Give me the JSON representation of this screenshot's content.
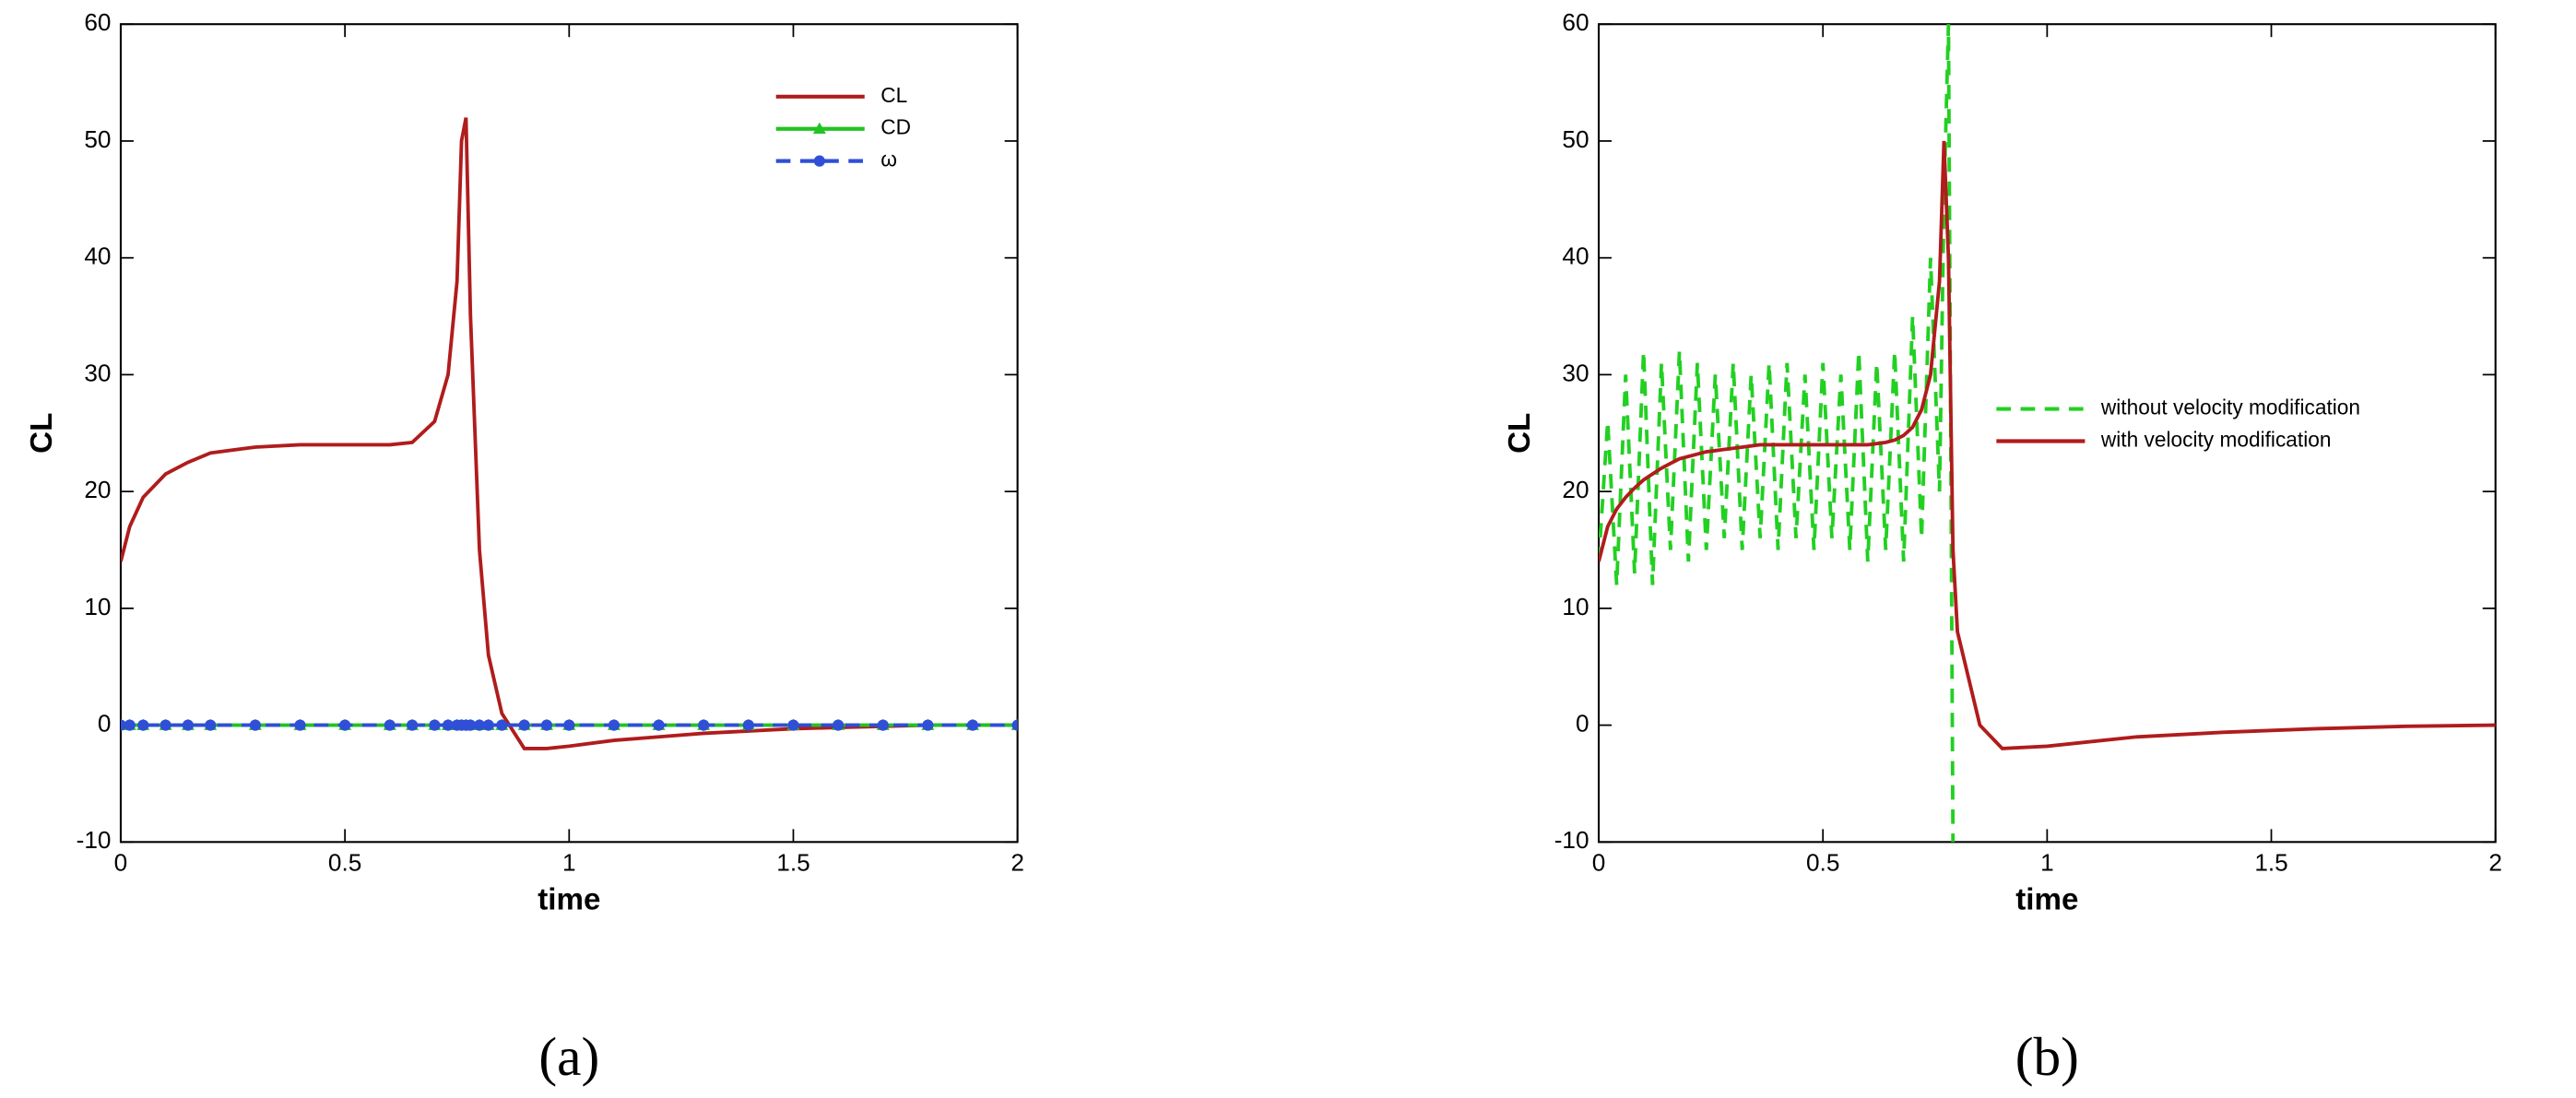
{
  "chart_data": [
    {
      "type": "line",
      "caption": "(a)",
      "x_label": "time",
      "y_label": "CL",
      "xlim": [
        0,
        2
      ],
      "ylim": [
        -10,
        60
      ],
      "xticks": [
        0,
        0.5,
        1,
        1.5,
        2
      ],
      "yticks": [
        -10,
        0,
        10,
        20,
        30,
        40,
        50,
        60
      ],
      "legend": "upper right",
      "x": [
        0,
        0.02,
        0.05,
        0.1,
        0.15,
        0.2,
        0.3,
        0.4,
        0.5,
        0.6,
        0.65,
        0.7,
        0.73,
        0.75,
        0.76,
        0.77,
        0.78,
        0.8,
        0.82,
        0.85,
        0.9,
        0.95,
        1.0,
        1.1,
        1.2,
        1.3,
        1.4,
        1.5,
        1.6,
        1.7,
        1.8,
        1.9,
        2.0
      ],
      "series": [
        {
          "name": "CL",
          "color": "#b01c1c",
          "line_style": "solid",
          "marker": "none",
          "values": [
            14,
            17,
            19.5,
            21.5,
            22.5,
            23.3,
            23.8,
            24,
            24,
            24,
            24.2,
            26,
            30,
            38,
            50,
            52,
            35,
            15,
            6,
            1,
            -2,
            -2,
            -1.8,
            -1.3,
            -1,
            -0.7,
            -0.5,
            -0.3,
            -0.2,
            -0.1,
            0,
            0,
            0
          ]
        },
        {
          "name": "CD",
          "color": "#22c322",
          "line_style": "solid",
          "marker": "triangle",
          "values": [
            0,
            0,
            0,
            0,
            0,
            0,
            0,
            0,
            0,
            0,
            0,
            0,
            0,
            0,
            0,
            0,
            0,
            0,
            0,
            0,
            0,
            0,
            0,
            0,
            0,
            0,
            0,
            0,
            0,
            0,
            0,
            0,
            0
          ]
        },
        {
          "name": "ω",
          "color": "#2f4fd6",
          "line_style": "dashed",
          "marker": "circle",
          "values": [
            0,
            0,
            0,
            0,
            0,
            0,
            0,
            0,
            0,
            0,
            0,
            0,
            0,
            0,
            0,
            0,
            0,
            0,
            0,
            0,
            0,
            0,
            0,
            0,
            0,
            0,
            0,
            0,
            0,
            0,
            0,
            0,
            0
          ]
        }
      ]
    },
    {
      "type": "line",
      "caption": "(b)",
      "x_label": "time",
      "y_label": "CL",
      "xlim": [
        0,
        2
      ],
      "ylim": [
        -10,
        60
      ],
      "xticks": [
        0,
        0.5,
        1,
        1.5,
        2
      ],
      "yticks": [
        -10,
        0,
        10,
        20,
        30,
        40,
        50,
        60
      ],
      "legend": "center right",
      "x": [
        0,
        0.02,
        0.04,
        0.06,
        0.08,
        0.1,
        0.12,
        0.14,
        0.16,
        0.18,
        0.2,
        0.22,
        0.24,
        0.26,
        0.28,
        0.3,
        0.32,
        0.34,
        0.36,
        0.38,
        0.4,
        0.42,
        0.44,
        0.46,
        0.48,
        0.5,
        0.52,
        0.54,
        0.56,
        0.58,
        0.6,
        0.62,
        0.64,
        0.66,
        0.68,
        0.7,
        0.72,
        0.74,
        0.76,
        0.77,
        0.78,
        0.79,
        0.8,
        0.85,
        0.9,
        1.0,
        1.2,
        1.4,
        1.6,
        1.8,
        2.0
      ],
      "series": [
        {
          "name": "without velocity modification",
          "color": "#22d022",
          "line_style": "dashed",
          "marker": "none",
          "values": [
            14,
            26,
            12,
            30,
            13,
            32,
            12,
            31,
            15,
            32,
            14,
            31,
            15,
            30,
            16,
            31,
            15,
            30,
            16,
            31,
            15,
            31,
            16,
            30,
            15,
            31,
            16,
            30,
            15,
            32,
            14,
            31,
            15,
            32,
            14,
            35,
            16,
            40,
            20,
            45,
            60,
            -10,
            null,
            null,
            null,
            null,
            null,
            null,
            null,
            null,
            null
          ]
        },
        {
          "name": "with velocity modification",
          "color": "#b01c1c",
          "line_style": "solid",
          "marker": "none",
          "values": [
            14,
            17,
            18.5,
            19.5,
            20.3,
            21,
            21.5,
            22,
            22.4,
            22.8,
            23,
            23.2,
            23.4,
            23.5,
            23.6,
            23.7,
            23.8,
            23.9,
            24,
            24,
            24,
            24,
            24,
            24,
            24,
            24,
            24,
            24,
            24,
            24,
            24,
            24.1,
            24.2,
            24.4,
            24.8,
            25.5,
            27,
            30,
            38,
            50,
            40,
            15,
            8,
            0,
            -2,
            -1.8,
            -1,
            -0.6,
            -0.3,
            -0.1,
            0
          ]
        }
      ]
    }
  ]
}
